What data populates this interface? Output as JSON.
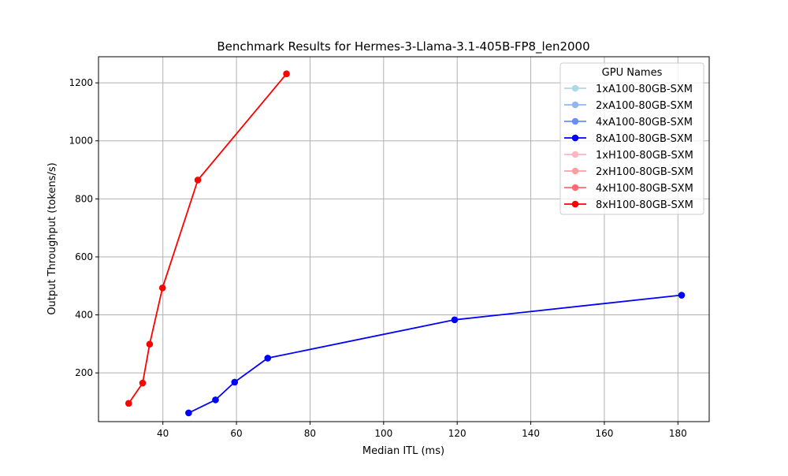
{
  "chart_data": {
    "type": "line",
    "title": "Benchmark Results for Hermes-3-Llama-3.1-405B-FP8_len2000",
    "xlabel": "Median ITL (ms)",
    "ylabel": "Output Throughput (tokens/s)",
    "xlim": [
      22.5,
      188.5
    ],
    "ylim": [
      32,
      1290
    ],
    "xticks": [
      40,
      60,
      80,
      100,
      120,
      140,
      160,
      180
    ],
    "yticks": [
      200,
      400,
      600,
      800,
      1000,
      1200
    ],
    "grid": true,
    "legend": {
      "title": "GPU Names",
      "placement": "top-right"
    },
    "series": [
      {
        "name": "1xA100-80GB-SXM",
        "color": "#add8e6",
        "x": [],
        "y": []
      },
      {
        "name": "2xA100-80GB-SXM",
        "color": "#94b6ee",
        "x": [],
        "y": []
      },
      {
        "name": "4xA100-80GB-SXM",
        "color": "#6a8df5",
        "x": [],
        "y": []
      },
      {
        "name": "8xA100-80GB-SXM",
        "color": "#0000ff",
        "x": [
          47.0,
          54.3,
          59.5,
          68.5,
          119.3,
          181.0
        ],
        "y": [
          62,
          107,
          168,
          251,
          383,
          468
        ]
      },
      {
        "name": "1xH100-80GB-SXM",
        "color": "#ffb6c1",
        "x": [],
        "y": []
      },
      {
        "name": "2xH100-80GB-SXM",
        "color": "#ff9ea5",
        "x": [],
        "y": []
      },
      {
        "name": "4xH100-80GB-SXM",
        "color": "#ff6b70",
        "x": [],
        "y": []
      },
      {
        "name": "8xH100-80GB-SXM",
        "color": "#ff0000",
        "x": [
          30.7,
          34.5,
          36.4,
          39.9,
          49.5,
          73.6
        ],
        "y": [
          95,
          165,
          299,
          493,
          865,
          1231
        ]
      }
    ]
  }
}
